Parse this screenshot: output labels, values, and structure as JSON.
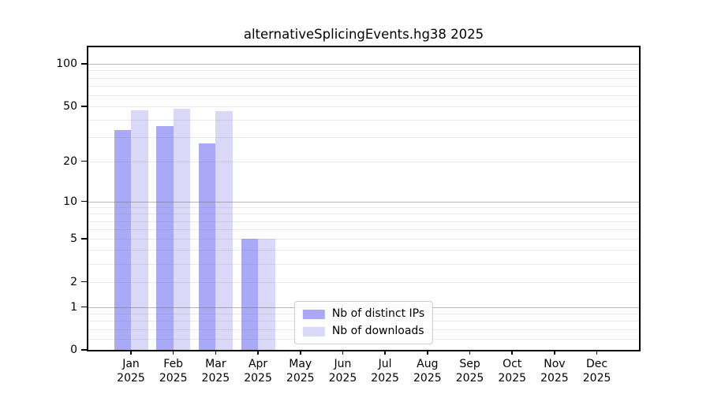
{
  "chart_data": {
    "type": "bar",
    "title": "alternativeSplicingEvents.hg38 2025",
    "y_scale": "log10(1+y)",
    "categories": [
      "Jan",
      "Feb",
      "Mar",
      "Apr",
      "May",
      "Jun",
      "Jul",
      "Aug",
      "Sep",
      "Oct",
      "Nov",
      "Dec"
    ],
    "x_tick_year": "2025",
    "series": [
      {
        "name": "Nb of distinct IPs",
        "key": "distinct-ips",
        "color": "#a9a9f7",
        "values": [
          34,
          36,
          27,
          5,
          0,
          0,
          0,
          0,
          0,
          0,
          0,
          0
        ]
      },
      {
        "name": "Nb of downloads",
        "key": "downloads",
        "color": "#d9d9f7",
        "values": [
          47,
          48,
          46,
          5,
          0,
          0,
          0,
          0,
          0,
          0,
          0,
          0
        ]
      }
    ],
    "y_ticks": [
      100,
      50,
      20,
      10,
      5,
      2,
      1,
      0
    ],
    "y_major_gridlines": [
      100,
      10,
      1
    ],
    "y_minor_gridlines": [
      90,
      80,
      70,
      60,
      50,
      40,
      30,
      20,
      9,
      8,
      7,
      6,
      5,
      4,
      3,
      2,
      0.8,
      0.6,
      0.4,
      0.2
    ],
    "ylim": [
      0,
      130
    ],
    "xlim": [
      -1,
      12
    ],
    "grid": true,
    "legend": {
      "position": "lower center",
      "entries": [
        "Nb of distinct IPs",
        "Nb of downloads"
      ]
    },
    "colors": {
      "axis": "#000000",
      "major_grid": "#b2b2b2",
      "minor_grid": "#e7e7e7",
      "background": "#ffffff"
    }
  }
}
